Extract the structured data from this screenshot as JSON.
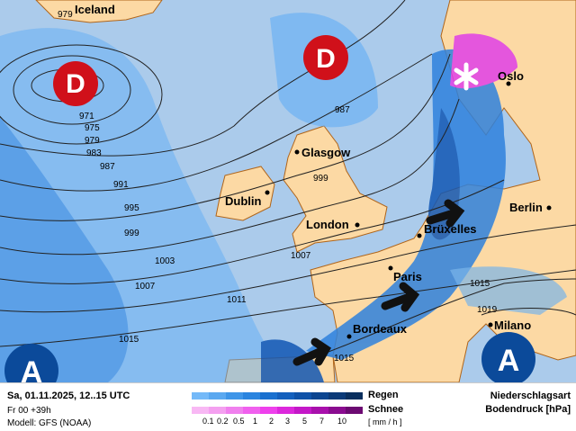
{
  "map": {
    "colors": {
      "sea": "#abcbeb",
      "land": "#fcd9a4",
      "border": "#b0651a",
      "rain_light": "#62aef5",
      "rain_mid": "#2f82dd",
      "rain_dark": "#1257b4",
      "snow": "#e040e8",
      "pressure_symbol": "#d0101a",
      "high_symbol": "#0b4a9a"
    },
    "lows": [
      {
        "label": "D"
      },
      {
        "label": "D"
      }
    ],
    "highs": [
      {
        "label": "A"
      },
      {
        "label": "A"
      }
    ],
    "snow_icon": "snowflake-icon",
    "cities": [
      "Iceland",
      "Oslo",
      "Glasgow",
      "Dublin",
      "London",
      "Brüxelles",
      "Berlin",
      "Paris",
      "Bordeaux",
      "Milano"
    ],
    "isobar_labels": [
      "979",
      "971",
      "975",
      "979",
      "983",
      "987",
      "991",
      "995",
      "999",
      "1003",
      "1007",
      "1011",
      "1015",
      "987",
      "999",
      "1007",
      "1015",
      "1019",
      "1015"
    ]
  },
  "legend": {
    "valid_time": "Sa, 01.11.2025, 12..15 UTC",
    "run": "Fr 00 +39h",
    "model": "Modell: GFS (NOAA)",
    "rain_label": "Regen",
    "snow_label": "Schnee",
    "unit": "[ mm / h ]",
    "ticks": [
      "0.1",
      "0.2",
      "0.5",
      "1",
      "2",
      "3",
      "5",
      "7",
      "10"
    ],
    "rain_colors": [
      "#74b9f8",
      "#5aa8f0",
      "#3e95e8",
      "#2a84df",
      "#1a70cf",
      "#1460bd",
      "#0f52a8",
      "#0c4590",
      "#0b3a78",
      "#0a2f5e"
    ],
    "snow_colors": [
      "#f8b8f4",
      "#f4a0f0",
      "#f080ee",
      "#f060ee",
      "#ee40ec",
      "#dc28dc",
      "#c418c8",
      "#a810ac",
      "#8a0c90",
      "#6c0a72"
    ],
    "title1": "Niederschlagsart",
    "title2": "Bodendruck [hPa]"
  }
}
